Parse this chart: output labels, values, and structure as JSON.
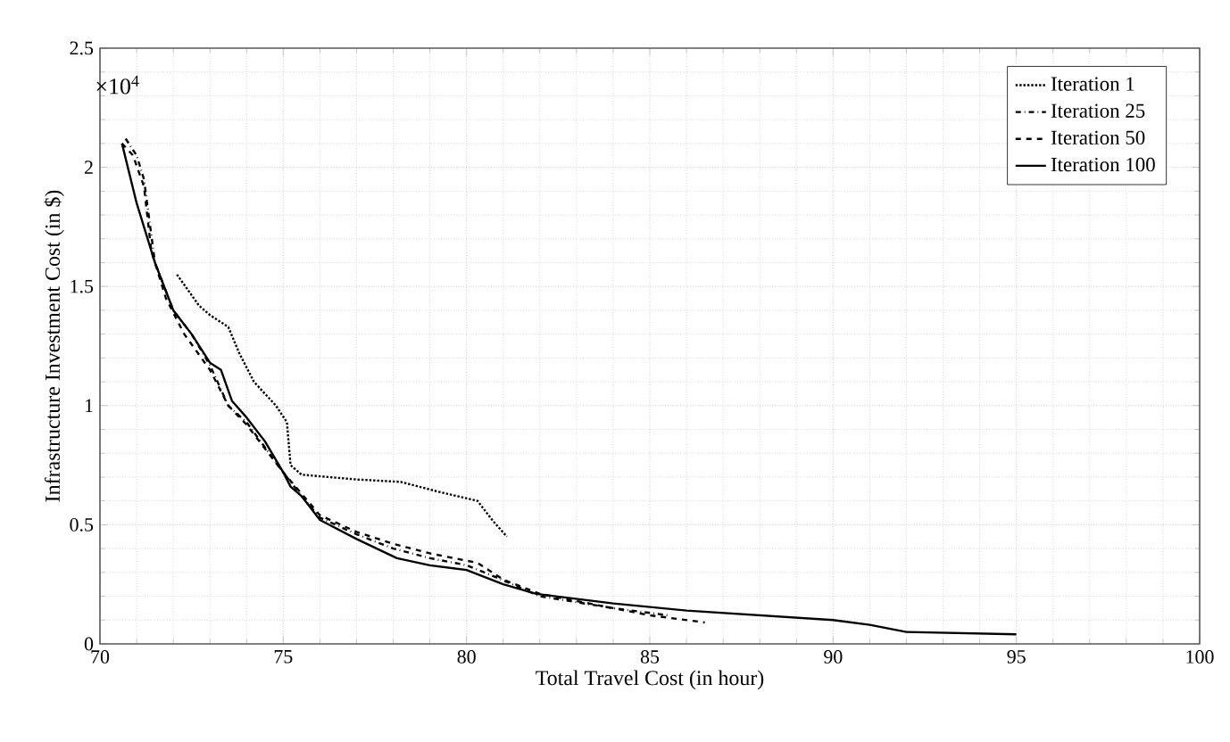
{
  "chart_data": {
    "type": "line",
    "xlabel": "Total Travel Cost (in hour)",
    "ylabel": "Infrastructure Investment Cost (in $)",
    "annotations": [
      "×10$^{4}$"
    ],
    "xlim": [
      70,
      100
    ],
    "ylim": [
      0,
      2.5
    ],
    "xticks": [
      70,
      75,
      80,
      85,
      90,
      95,
      100
    ],
    "yticks": [
      0,
      0.5,
      1,
      1.5,
      2,
      2.5
    ],
    "grid": true,
    "legend": "top right",
    "marker": "none",
    "series": [
      {
        "name": "Iteration 1",
        "color": "#000000",
        "line_style": "dotted",
        "x": [
          72.1,
          72.7,
          73.0,
          73.5,
          73.8,
          74.2,
          74.8,
          75.1,
          75.2,
          75.5,
          77.0,
          78.2,
          79.2,
          80.3,
          80.7,
          81.1
        ],
        "values": [
          1.55,
          1.42,
          1.38,
          1.33,
          1.22,
          1.1,
          1.0,
          0.93,
          0.75,
          0.71,
          0.69,
          0.68,
          0.64,
          0.6,
          0.52,
          0.45
        ]
      },
      {
        "name": "Iteration 25",
        "color": "#000000",
        "line_style": "dashdot",
        "x": [
          70.7,
          71.0,
          71.2,
          71.5,
          72.0,
          72.5,
          73.0,
          73.5,
          74.0,
          75.0,
          75.5,
          76.0,
          77.0,
          78.0,
          79.0,
          80.0,
          80.8,
          82.0,
          84.0,
          85.5
        ],
        "values": [
          2.12,
          2.05,
          1.95,
          1.6,
          1.4,
          1.3,
          1.17,
          1.0,
          0.93,
          0.72,
          0.62,
          0.53,
          0.46,
          0.4,
          0.36,
          0.33,
          0.28,
          0.2,
          0.15,
          0.12
        ]
      },
      {
        "name": "Iteration 50",
        "color": "#000000",
        "line_style": "dashed",
        "x": [
          70.6,
          70.9,
          71.2,
          71.4,
          71.8,
          72.3,
          73.0,
          73.5,
          74.0,
          75.0,
          75.5,
          76.0,
          77.0,
          78.0,
          79.0,
          80.3,
          81.0,
          82.0,
          83.0,
          84.0,
          85.0,
          86.5
        ],
        "values": [
          2.1,
          2.05,
          1.92,
          1.65,
          1.45,
          1.3,
          1.15,
          1.0,
          0.92,
          0.72,
          0.63,
          0.54,
          0.47,
          0.42,
          0.38,
          0.34,
          0.27,
          0.21,
          0.18,
          0.15,
          0.12,
          0.09
        ]
      },
      {
        "name": "Iteration 100",
        "color": "#000000",
        "line_style": "solid",
        "x": [
          70.6,
          71.0,
          71.5,
          72.0,
          72.5,
          73.0,
          73.3,
          73.6,
          74.0,
          74.5,
          75.0,
          75.2,
          75.5,
          76.0,
          77.0,
          78.1,
          79.0,
          80.0,
          81.0,
          81.9,
          84.0,
          86.0,
          88.0,
          90.0,
          91.0,
          92.0,
          95.0
        ],
        "values": [
          2.1,
          1.85,
          1.6,
          1.4,
          1.3,
          1.18,
          1.15,
          1.02,
          0.95,
          0.85,
          0.72,
          0.66,
          0.62,
          0.52,
          0.44,
          0.36,
          0.33,
          0.31,
          0.25,
          0.21,
          0.17,
          0.14,
          0.12,
          0.1,
          0.08,
          0.05,
          0.04
        ]
      }
    ]
  }
}
